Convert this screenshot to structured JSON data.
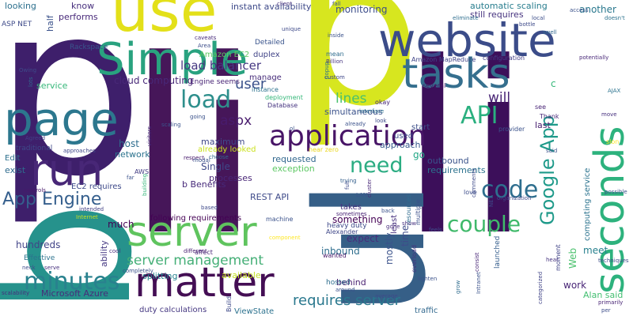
{
  "cloud": {
    "words": [
      {
        "text": "p",
        "color": "#3e1f6b"
      },
      {
        "text": "p",
        "color": "#d7e61f"
      },
      {
        "text": "b",
        "color": "#26928c"
      },
      {
        "text": "li",
        "color": "#461659"
      },
      {
        "text": "li",
        "color": "#3c0f5a"
      },
      {
        "text": "ul",
        "color": "#365f87"
      },
      {
        "text": "use",
        "color": "#e3e019"
      },
      {
        "text": "website",
        "color": "#3b4c89"
      },
      {
        "text": "Simple",
        "color": "#29a27f"
      },
      {
        "text": "tasks",
        "color": "#356f8e"
      },
      {
        "text": "page",
        "color": "#2c778e"
      },
      {
        "text": "run",
        "color": "#482777"
      },
      {
        "text": "application",
        "color": "#481567"
      },
      {
        "text": "server",
        "color": "#5fc45e"
      },
      {
        "text": "matter",
        "color": "#440e54"
      },
      {
        "text": "seconds",
        "color": "#2db27d"
      },
      {
        "text": "Google App",
        "color": "#1f9a8a"
      },
      {
        "text": "load",
        "color": "#2e8f8c"
      },
      {
        "text": "API",
        "color": "#2ab07f"
      },
      {
        "text": "code",
        "color": "#2e6e8e"
      },
      {
        "text": "need",
        "color": "#2bac82"
      },
      {
        "text": "couple",
        "color": "#3fb96a"
      },
      {
        "text": "minutes",
        "color": "#29818e"
      },
      {
        "text": "App Engine",
        "color": "#355f8d"
      },
      {
        "text": "requires server",
        "color": "#2a788e"
      },
      {
        "text": "server management",
        "color": "#45af77"
      },
      {
        "text": "lines",
        "color": "#4ac16d"
      },
      {
        "text": "user",
        "color": "#3b528b"
      },
      {
        "text": "aspx",
        "color": "#481b6d"
      },
      {
        "text": "will",
        "color": "#482475"
      },
      {
        "text": "load balancer",
        "color": "#453781"
      },
      {
        "text": "monitoring",
        "color": "#3d4e8a"
      },
      {
        "text": "cloud computing",
        "color": "#482878"
      },
      {
        "text": "instant availability",
        "color": "#3e4a89"
      },
      {
        "text": "automatic scaling",
        "color": "#287d8e"
      },
      {
        "text": "another",
        "color": "#2a788e"
      },
      {
        "text": "Amazon EC2",
        "color": "#5ec962"
      },
      {
        "text": "duplex",
        "color": "#414487"
      },
      {
        "text": "Detailed",
        "color": "#3a548c"
      },
      {
        "text": "performs",
        "color": "#482979"
      },
      {
        "text": "Rackspace",
        "color": "#39568c"
      },
      {
        "text": "half",
        "color": "#3b528b"
      },
      {
        "text": "know",
        "color": "#472f7d"
      },
      {
        "text": "looking",
        "color": "#2d708e"
      },
      {
        "text": "ASP NET",
        "color": "#3e4a89"
      },
      {
        "text": "service",
        "color": "#35b779"
      },
      {
        "text": "Engine seems",
        "color": "#482475"
      },
      {
        "text": "manage",
        "color": "#472c7a"
      },
      {
        "text": "instance",
        "color": "#2c728e"
      },
      {
        "text": "deployment",
        "color": "#35b779"
      },
      {
        "text": "Database",
        "color": "#463480"
      },
      {
        "text": "simultaneous",
        "color": "#3b528b"
      },
      {
        "text": "start",
        "color": "#3c4f8a"
      },
      {
        "text": "last",
        "color": "#482071"
      },
      {
        "text": "used",
        "color": "#3e4c8a"
      },
      {
        "text": "approach",
        "color": "#38598c"
      },
      {
        "text": "still requires",
        "color": "#46337f"
      },
      {
        "text": "configuration",
        "color": "#433e85"
      },
      {
        "text": "Amazon MapReduce",
        "color": "#404588"
      },
      {
        "text": "several",
        "color": "#471164"
      },
      {
        "text": "okay",
        "color": "#482677"
      },
      {
        "text": "maximum",
        "color": "#3f4889"
      },
      {
        "text": "already looked",
        "color": "#cae11f"
      },
      {
        "text": "Single",
        "color": "#3e4989"
      },
      {
        "text": "processes",
        "color": "#482677"
      },
      {
        "text": "b Benefits",
        "color": "#472a7a"
      },
      {
        "text": "REST API",
        "color": "#3e4a89"
      },
      {
        "text": "requested",
        "color": "#31678e"
      },
      {
        "text": "exception",
        "color": "#5cc863"
      },
      {
        "text": "outbound",
        "color": "#3a538b"
      },
      {
        "text": "requirements",
        "color": "#2c728e"
      },
      {
        "text": "go",
        "color": "#21a685"
      },
      {
        "text": "host",
        "color": "#2e6d8e"
      },
      {
        "text": "network",
        "color": "#2c738e"
      },
      {
        "text": "traditional",
        "color": "#3e4989"
      },
      {
        "text": "Edit",
        "color": "#2d718e"
      },
      {
        "text": "exist",
        "color": "#2f6b8e"
      },
      {
        "text": "EC2 requires",
        "color": "#3e4a89"
      },
      {
        "text": "following requirements",
        "color": "#440154"
      },
      {
        "text": "something",
        "color": "#440154"
      },
      {
        "text": "expect",
        "color": "#472d7b"
      },
      {
        "text": "inbound",
        "color": "#2e6e8e"
      },
      {
        "text": "mostly",
        "color": "#3b528b"
      },
      {
        "text": "takes",
        "color": "#46327e"
      },
      {
        "text": "behind",
        "color": "#481f70"
      },
      {
        "text": "time",
        "color": "#3e4c8a"
      },
      {
        "text": "Web",
        "color": "#4ac16d"
      },
      {
        "text": "work",
        "color": "#482576"
      },
      {
        "text": "meet",
        "color": "#27808e"
      },
      {
        "text": "Alan said",
        "color": "#43bf71"
      },
      {
        "text": "much",
        "color": "#440154"
      },
      {
        "text": "hundreds",
        "color": "#414487"
      },
      {
        "text": "ability",
        "color": "#453882"
      },
      {
        "text": "Effective",
        "color": "#2c738e"
      },
      {
        "text": "splitting",
        "color": "#26828e"
      },
      {
        "text": "available",
        "color": "#c2df23"
      },
      {
        "text": "Microsoft Azure",
        "color": "#472c7a"
      },
      {
        "text": "duty calculations",
        "color": "#453781"
      },
      {
        "text": "ViewState",
        "color": "#2c728e"
      },
      {
        "text": "Build",
        "color": "#3e4a89"
      },
      {
        "text": "hosted",
        "color": "#2e6f8e"
      },
      {
        "text": "traffic",
        "color": "#31688e"
      },
      {
        "text": "computing service",
        "color": "#2c738e"
      },
      {
        "text": "heavy duty",
        "color": "#3e4a89"
      },
      {
        "text": "least",
        "color": "#46307e"
      },
      {
        "text": "AWS",
        "color": "#433d84"
      },
      {
        "text": "Alexander",
        "color": "#3f4788"
      },
      {
        "text": "machine",
        "color": "#3b528b"
      },
      {
        "text": "sometimes",
        "color": "#482374"
      },
      {
        "text": "launched",
        "color": "#355e8d"
      },
      {
        "text": "moment",
        "color": "#414487"
      },
      {
        "text": "overload",
        "color": "#46337f"
      },
      {
        "text": "wanted",
        "color": "#48186a"
      },
      {
        "text": "mean",
        "color": "#2f6c8e"
      },
      {
        "text": "Billion",
        "color": "#463480"
      },
      {
        "text": "Thank",
        "color": "#482878"
      },
      {
        "text": "provider",
        "color": "#3b528b"
      },
      {
        "text": "see",
        "color": "#482475"
      },
      {
        "text": "love",
        "color": "#3d4d8a"
      },
      {
        "text": "multiple",
        "color": "#3c4f8a"
      },
      {
        "text": "resources",
        "color": "#2f6b8e"
      },
      {
        "text": "near zero",
        "color": "#ead61c"
      },
      {
        "text": "affect",
        "color": "#482677"
      },
      {
        "text": "cool",
        "color": "#472f7d"
      },
      {
        "text": "serve",
        "color": "#46307e"
      },
      {
        "text": "neck",
        "color": "#3e4c8a"
      },
      {
        "text": "scalability",
        "color": "#472d7b"
      },
      {
        "text": "controls",
        "color": "#48196b"
      },
      {
        "text": "intended",
        "color": "#424086"
      },
      {
        "text": "Internet",
        "color": "#c8e020"
      },
      {
        "text": "Agreed",
        "color": "#424186"
      },
      {
        "text": "scaling",
        "color": "#3a548c"
      },
      {
        "text": "going",
        "color": "#3b528b"
      },
      {
        "text": "respect",
        "color": "#481b6d"
      },
      {
        "text": "choose",
        "color": "#31678e"
      },
      {
        "text": "based",
        "color": "#3e4989"
      },
      {
        "text": "different",
        "color": "#482071"
      },
      {
        "text": "completely",
        "color": "#3b528b"
      },
      {
        "text": "component",
        "color": "#fde725"
      },
      {
        "text": "LAN",
        "color": "#3a548c"
      },
      {
        "text": "trying",
        "color": "#35608d"
      },
      {
        "text": "cluster",
        "color": "#482878"
      },
      {
        "text": "full",
        "color": "#3e4c8a"
      },
      {
        "text": "interface",
        "color": "#2d718e"
      },
      {
        "text": "already",
        "color": "#3b528b"
      },
      {
        "text": "custom",
        "color": "#3f4788"
      },
      {
        "text": "inside",
        "color": "#3b528b"
      },
      {
        "text": "popup",
        "color": "#2c728e"
      },
      {
        "text": "unique",
        "color": "#3e4a89"
      },
      {
        "text": "caveats",
        "color": "#472a7a"
      },
      {
        "text": "Area",
        "color": "#3d4e8a"
      },
      {
        "text": "client",
        "color": "#46327e"
      },
      {
        "text": "fall",
        "color": "#3b528b"
      },
      {
        "text": "eliminate",
        "color": "#2e6e8e"
      },
      {
        "text": "bottle",
        "color": "#3e4a89"
      },
      {
        "text": "swell",
        "color": "#31678e"
      },
      {
        "text": "potentially",
        "color": "#482878"
      },
      {
        "text": "AJAX",
        "color": "#2c738e"
      },
      {
        "text": "move",
        "color": "#46307e"
      },
      {
        "text": "slon",
        "color": "#fde725"
      },
      {
        "text": "possible",
        "color": "#3b528b"
      },
      {
        "text": "techniques",
        "color": "#3e4c8a"
      },
      {
        "text": "primarily",
        "color": "#482475"
      },
      {
        "text": "per",
        "color": "#3d4d8a"
      },
      {
        "text": "hear",
        "color": "#46337f"
      },
      {
        "text": "categorized",
        "color": "#414487"
      },
      {
        "text": "average",
        "color": "#3e4a89"
      },
      {
        "text": "around",
        "color": "#3b528b"
      },
      {
        "text": "lighten",
        "color": "#3b528b"
      },
      {
        "text": "grow",
        "color": "#2f6c8e"
      },
      {
        "text": "consist",
        "color": "#482677"
      },
      {
        "text": "Intranet",
        "color": "#3b528b"
      },
      {
        "text": "NET",
        "color": "#3e4a89"
      },
      {
        "text": "organization",
        "color": "#3f4788"
      },
      {
        "text": "feels",
        "color": "#3e4c8a"
      },
      {
        "text": "show",
        "color": "#46307e"
      },
      {
        "text": "gone",
        "color": "#472d7b"
      },
      {
        "text": "back",
        "color": "#3b528b"
      },
      {
        "text": "Owing",
        "color": "#3e4a89"
      },
      {
        "text": "lots",
        "color": "#31688e"
      },
      {
        "text": "visitors",
        "color": "#472a7a"
      },
      {
        "text": "modal",
        "color": "#3b528b"
      },
      {
        "text": "approaches",
        "color": "#3f4788"
      },
      {
        "text": "far",
        "color": "#3b528b"
      },
      {
        "text": "building",
        "color": "#35b779"
      },
      {
        "text": "said",
        "color": "#3b528b"
      },
      {
        "text": "comments",
        "color": "#3e4a89"
      },
      {
        "text": "doesn't",
        "color": "#2c738e"
      },
      {
        "text": "access",
        "color": "#3b528b"
      },
      {
        "text": "local",
        "color": "#3d4e8a"
      },
      {
        "text": "ol",
        "color": "#3b528b"
      },
      {
        "text": "look",
        "color": "#3e4a89"
      },
      {
        "text": "c",
        "color": "#35b779"
      }
    ]
  }
}
